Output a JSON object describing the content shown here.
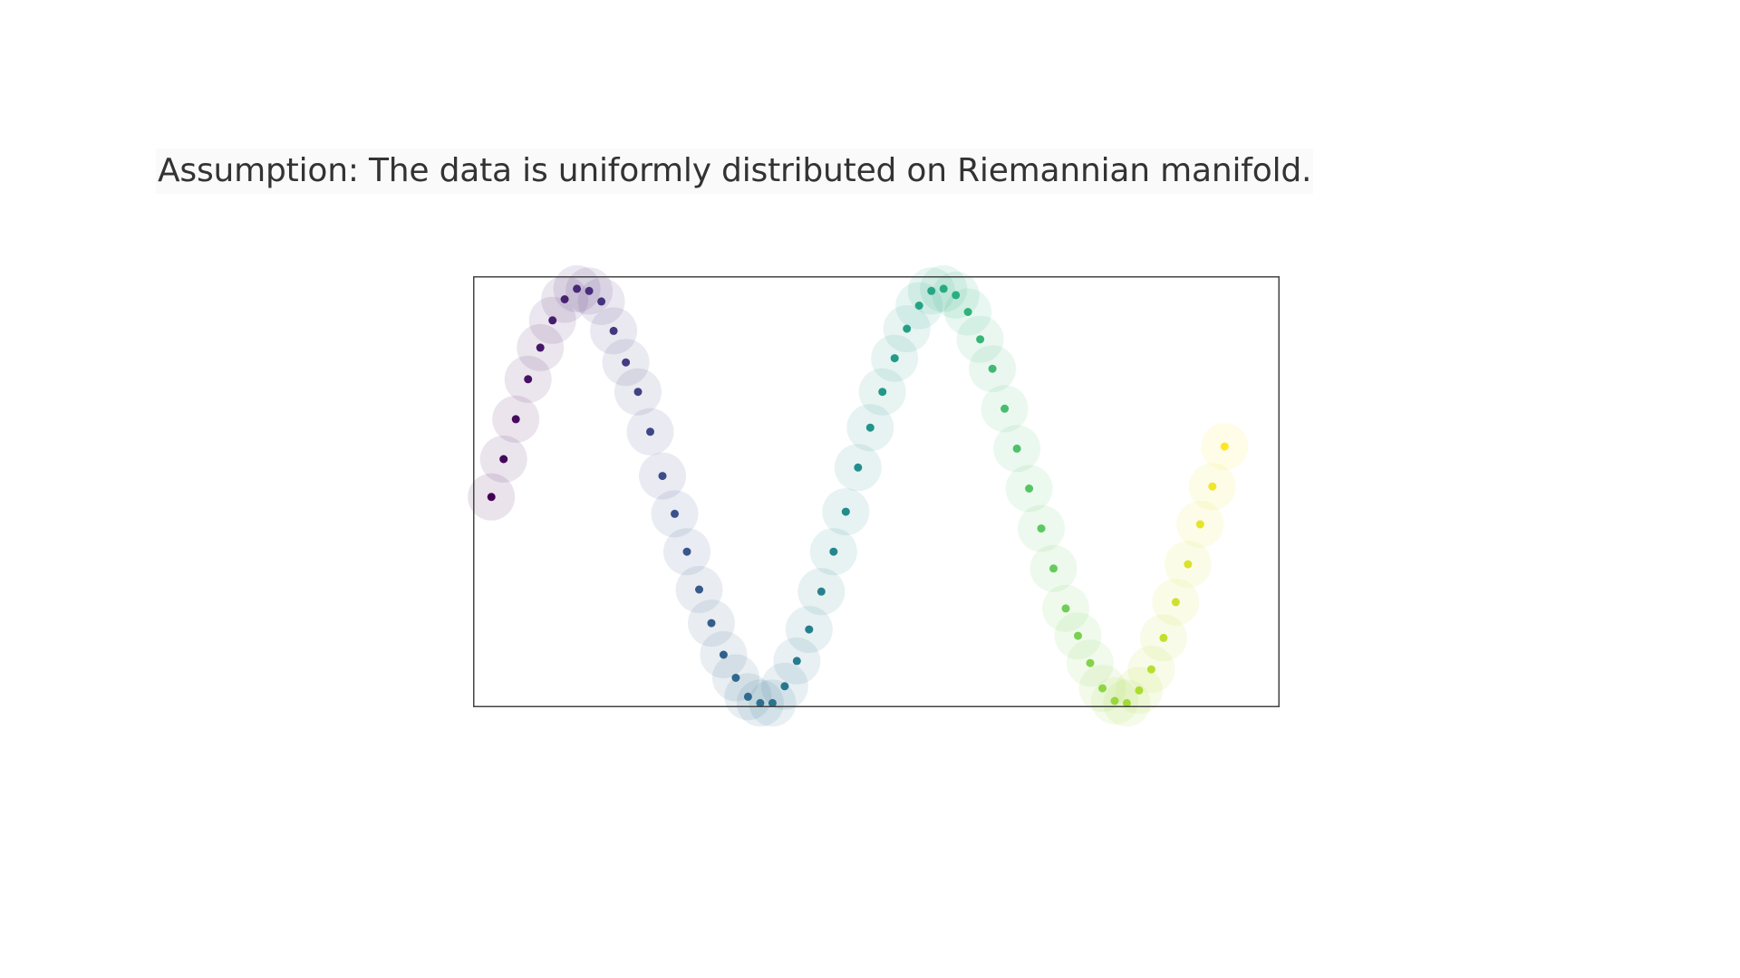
{
  "caption": {
    "text": "Assumption: The data is uniformly distributed on Riemannian manifold."
  },
  "chart_data": {
    "type": "scatter",
    "title": "",
    "xlabel": "",
    "ylabel": "",
    "axes_visible": false,
    "ticks_visible": false,
    "grid": false,
    "legend": "none",
    "xlim": [
      -0.15,
      6.45
    ],
    "ylim": [
      -1.0,
      1.05
    ],
    "colormap": "viridis",
    "point_size": "small dot with large translucent halo",
    "series": [
      {
        "x": [
          0.0,
          0.1,
          0.2,
          0.3,
          0.4,
          0.5,
          0.6,
          0.7,
          0.8,
          0.9,
          1.0,
          1.1,
          1.2,
          1.3,
          1.4,
          1.5,
          1.6,
          1.7,
          1.8,
          1.9,
          2.0,
          2.1,
          2.2,
          2.3,
          2.4,
          2.5,
          2.6,
          2.7,
          2.8,
          2.9,
          3.0,
          3.1,
          3.2,
          3.3,
          3.4,
          3.5,
          3.6,
          3.7,
          3.8,
          3.9,
          4.0,
          4.1,
          4.2,
          4.3,
          4.4,
          4.5,
          4.6,
          4.7,
          4.8,
          4.9,
          5.0,
          5.1,
          5.2,
          5.3,
          5.4,
          5.5,
          5.6,
          5.7,
          5.8,
          5.9,
          6.0
        ],
        "y": [
          0.0,
          0.18,
          0.37,
          0.56,
          0.71,
          0.84,
          0.94,
          0.99,
          0.98,
          0.93,
          0.79,
          0.64,
          0.5,
          0.31,
          0.1,
          -0.08,
          -0.26,
          -0.44,
          -0.6,
          -0.75,
          -0.86,
          -0.95,
          -0.98,
          -0.98,
          -0.9,
          -0.78,
          -0.63,
          -0.45,
          -0.26,
          -0.07,
          0.14,
          0.33,
          0.5,
          0.66,
          0.8,
          0.91,
          0.98,
          0.99,
          0.96,
          0.88,
          0.75,
          0.61,
          0.42,
          0.23,
          0.04,
          -0.15,
          -0.34,
          -0.53,
          -0.66,
          -0.79,
          -0.91,
          -0.97,
          -0.98,
          -0.92,
          -0.82,
          -0.67,
          -0.5,
          -0.32,
          -0.13,
          0.05,
          0.24
        ]
      }
    ]
  }
}
